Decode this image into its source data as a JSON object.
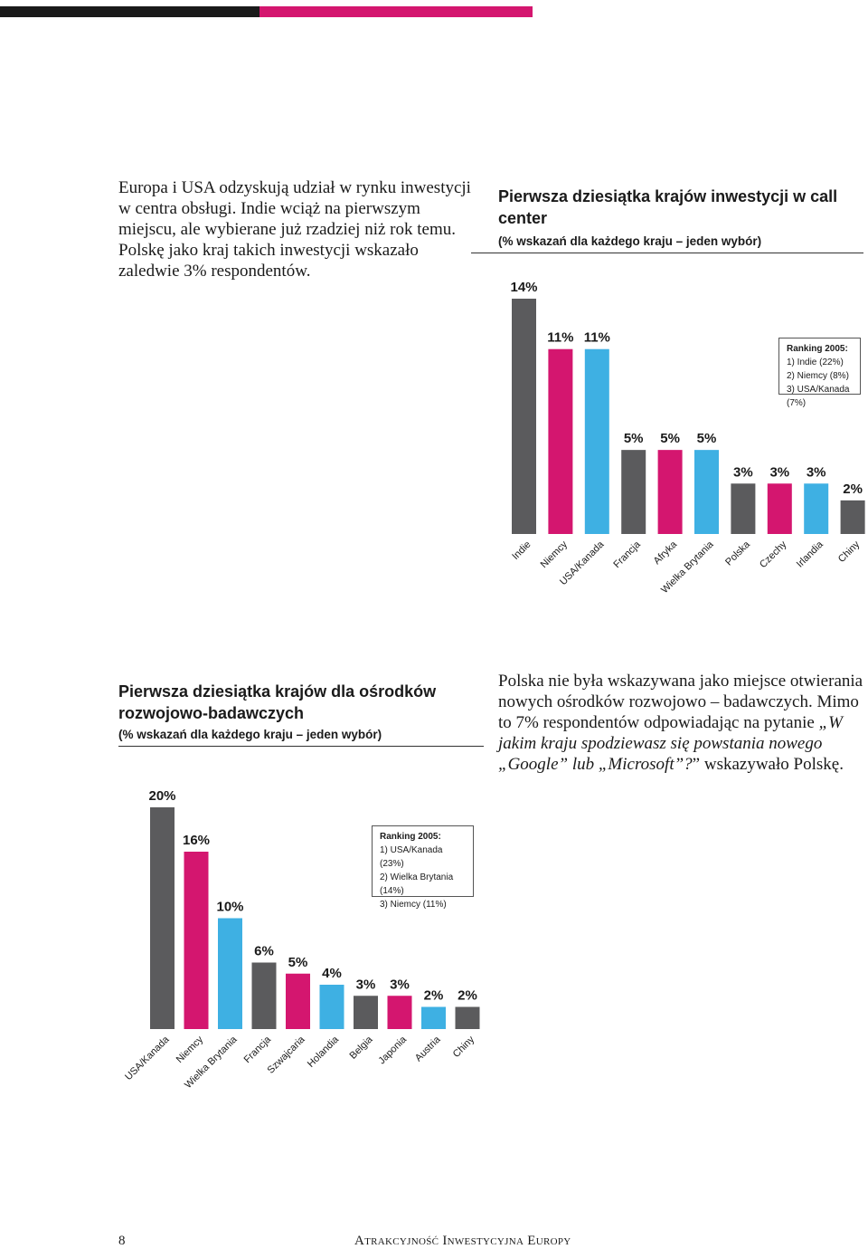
{
  "colors": {
    "gray": "#5b5b5d",
    "pink": "#d4166f",
    "blue": "#3eb0e3",
    "text": "#1a1a1a"
  },
  "intro_text": "Europa i USA odzyskują udział w rynku inwestycji w centra obsługi. Indie wciąż na pierwszym miejscu, ale wybierane już rzadziej niż rok temu. Polskę jako kraj takich inwestycji wskazało zaledwie 3% respondentów.",
  "side_text": {
    "part1": "Polska nie była wskazywana jako miejsce otwierania nowych ośrodków rozwojowo – badawczych. Mimo to 7% respondentów odpowiadając na pytanie ",
    "question": "„W jakim kraju spodziewasz się powstania nowego „Google” lub „Microsoft”?",
    "part2": "” wskazywało Polskę."
  },
  "footer": {
    "page_number": "8",
    "title": "Atrakcyjność Inwestycyjna Europy"
  },
  "chart_data": [
    {
      "type": "bar",
      "title": "Pierwsza dziesiątka krajów inwestycji w call center",
      "subtitle": "(% wskazań dla każdego kraju – jeden wybór)",
      "categories": [
        "Indie",
        "Niemcy",
        "USA/Kanada",
        "Francja",
        "Afryka",
        "Wielka Brytania",
        "Polska",
        "Czechy",
        "Irlandia",
        "Chiny"
      ],
      "values": [
        14,
        11,
        11,
        5,
        5,
        5,
        3,
        3,
        3,
        2
      ],
      "labels": [
        "14%",
        "11%",
        "11%",
        "5%",
        "5%",
        "5%",
        "3%",
        "3%",
        "3%",
        "2%"
      ],
      "ylim": [
        0,
        14
      ],
      "ranking": {
        "title": "Ranking 2005:",
        "items": [
          "1) Indie (22%)",
          "2) Niemcy (8%)",
          "3) USA/Kanada (7%)"
        ]
      }
    },
    {
      "type": "bar",
      "title": "Pierwsza dziesiątka krajów dla ośrodków rozwojowo-badawczych",
      "subtitle": "(% wskazań dla każdego kraju – jeden wybór)",
      "categories": [
        "USA/Kanada",
        "Niemcy",
        "Wielka Brytania",
        "Francja",
        "Szwajcaria",
        "Holandia",
        "Belgia",
        "Japonia",
        "Austria",
        "Chiny"
      ],
      "values": [
        20,
        16,
        10,
        6,
        5,
        4,
        3,
        3,
        2,
        2
      ],
      "labels": [
        "20%",
        "16%",
        "10%",
        "6%",
        "5%",
        "4%",
        "3%",
        "3%",
        "2%",
        "2%"
      ],
      "ylim": [
        0,
        20
      ],
      "ranking": {
        "title": "Ranking 2005:",
        "items": [
          "1) USA/Kanada (23%)",
          "2) Wielka Brytania (14%)",
          "3) Niemcy (11%)"
        ]
      }
    }
  ]
}
